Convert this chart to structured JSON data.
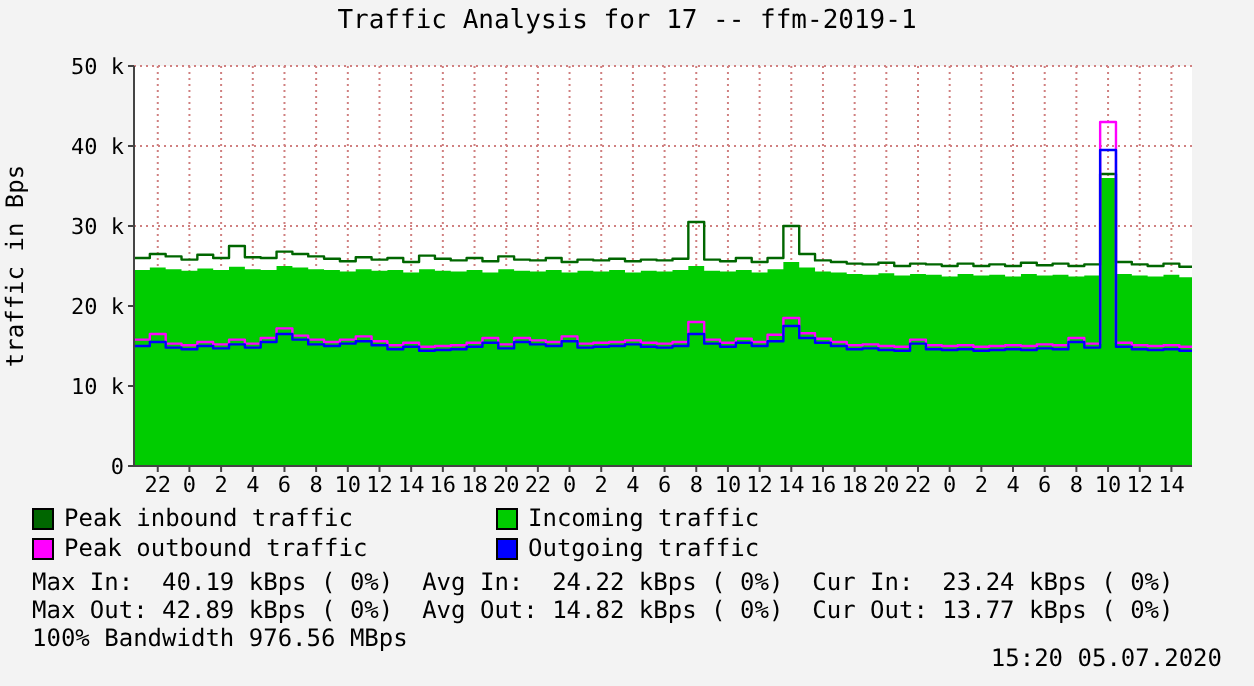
{
  "chart_data": {
    "type": "step",
    "title": "Traffic Analysis for 17 -- ffm-2019-1",
    "ylabel": "traffic in Bps",
    "x": [
      "2020-07-02T20:30",
      "2020-07-02T21:30",
      "2020-07-02T22:30",
      "2020-07-02T23:30",
      "2020-07-03T00:30",
      "2020-07-03T01:30",
      "2020-07-03T02:30",
      "2020-07-03T03:30",
      "2020-07-03T04:30",
      "2020-07-03T05:30",
      "2020-07-03T06:30",
      "2020-07-03T07:30",
      "2020-07-03T08:30",
      "2020-07-03T09:30",
      "2020-07-03T10:30",
      "2020-07-03T11:30",
      "2020-07-03T12:30",
      "2020-07-03T13:30",
      "2020-07-03T14:30",
      "2020-07-03T15:30",
      "2020-07-03T16:30",
      "2020-07-03T17:30",
      "2020-07-03T18:30",
      "2020-07-03T19:30",
      "2020-07-03T20:30",
      "2020-07-03T21:30",
      "2020-07-03T22:30",
      "2020-07-03T23:30",
      "2020-07-04T00:30",
      "2020-07-04T01:30",
      "2020-07-04T02:30",
      "2020-07-04T03:30",
      "2020-07-04T04:30",
      "2020-07-04T05:30",
      "2020-07-04T06:30",
      "2020-07-04T07:30",
      "2020-07-04T08:30",
      "2020-07-04T09:30",
      "2020-07-04T10:30",
      "2020-07-04T11:30",
      "2020-07-04T12:30",
      "2020-07-04T13:30",
      "2020-07-04T14:30",
      "2020-07-04T15:30",
      "2020-07-04T16:30",
      "2020-07-04T17:30",
      "2020-07-04T18:30",
      "2020-07-04T19:30",
      "2020-07-04T20:30",
      "2020-07-04T21:30",
      "2020-07-04T22:30",
      "2020-07-04T23:30",
      "2020-07-05T00:30",
      "2020-07-05T01:30",
      "2020-07-05T02:30",
      "2020-07-05T03:30",
      "2020-07-05T04:30",
      "2020-07-05T05:30",
      "2020-07-05T06:30",
      "2020-07-05T07:30",
      "2020-07-05T08:30",
      "2020-07-05T09:30",
      "2020-07-05T10:30",
      "2020-07-05T11:30",
      "2020-07-05T12:30",
      "2020-07-05T13:30",
      "2020-07-05T14:30",
      "2020-07-05T15:18"
    ],
    "series": [
      {
        "name": "Incoming traffic",
        "type": "area",
        "color": "#00cc00",
        "values": [
          24.5,
          24.8,
          24.6,
          24.4,
          24.7,
          24.5,
          24.9,
          24.6,
          24.5,
          25.0,
          24.8,
          24.6,
          24.5,
          24.3,
          24.6,
          24.4,
          24.5,
          24.2,
          24.6,
          24.4,
          24.3,
          24.5,
          24.2,
          24.6,
          24.4,
          24.3,
          24.5,
          24.2,
          24.4,
          24.3,
          24.5,
          24.2,
          24.4,
          24.3,
          24.5,
          25.0,
          24.4,
          24.3,
          24.5,
          24.2,
          24.6,
          25.5,
          24.8,
          24.3,
          24.2,
          24.0,
          23.9,
          24.1,
          23.8,
          24.0,
          23.9,
          23.7,
          24.0,
          23.8,
          23.9,
          23.7,
          24.0,
          23.8,
          23.9,
          23.7,
          23.8,
          36.0,
          24.0,
          23.8,
          23.7,
          23.9,
          23.6,
          23.5
        ]
      },
      {
        "name": "Peak inbound traffic",
        "color": "#006600",
        "values": [
          26.0,
          26.5,
          26.2,
          25.8,
          26.4,
          26.0,
          27.5,
          26.1,
          26.0,
          26.8,
          26.5,
          26.2,
          25.9,
          25.6,
          26.1,
          25.8,
          26.0,
          25.5,
          26.3,
          25.9,
          25.7,
          26.0,
          25.6,
          26.2,
          25.8,
          25.7,
          26.0,
          25.5,
          25.8,
          25.7,
          25.9,
          25.6,
          25.8,
          25.7,
          25.9,
          30.5,
          25.8,
          25.6,
          26.0,
          25.5,
          26.0,
          30.0,
          26.5,
          25.7,
          25.5,
          25.3,
          25.2,
          25.4,
          25.0,
          25.3,
          25.2,
          25.0,
          25.3,
          25.0,
          25.2,
          25.0,
          25.4,
          25.1,
          25.3,
          25.0,
          25.2,
          36.5,
          25.5,
          25.2,
          25.0,
          25.3,
          24.9,
          24.8
        ]
      },
      {
        "name": "Peak outbound traffic",
        "color": "#ff00ff",
        "values": [
          15.8,
          16.5,
          15.3,
          15.1,
          15.5,
          15.2,
          15.8,
          15.3,
          16.0,
          17.2,
          16.3,
          15.8,
          15.5,
          15.8,
          16.2,
          15.6,
          15.1,
          15.4,
          14.9,
          15.0,
          15.1,
          15.4,
          16.0,
          15.2,
          16.0,
          15.7,
          15.5,
          16.2,
          15.3,
          15.4,
          15.5,
          15.7,
          15.4,
          15.3,
          15.5,
          18.0,
          15.8,
          15.4,
          15.9,
          15.5,
          16.4,
          18.5,
          16.6,
          15.9,
          15.5,
          15.1,
          15.2,
          15.0,
          14.9,
          15.8,
          15.1,
          15.0,
          15.1,
          14.9,
          15.0,
          15.1,
          15.0,
          15.2,
          15.1,
          16.0,
          15.3,
          43.0,
          15.4,
          15.1,
          15.0,
          15.1,
          14.9,
          14.8
        ]
      },
      {
        "name": "Outgoing traffic",
        "color": "#0000ff",
        "values": [
          15.0,
          15.5,
          14.8,
          14.6,
          15.0,
          14.7,
          15.2,
          14.8,
          15.5,
          16.5,
          15.8,
          15.2,
          15.0,
          15.3,
          15.6,
          15.1,
          14.6,
          14.9,
          14.4,
          14.5,
          14.6,
          14.9,
          15.4,
          14.7,
          15.5,
          15.2,
          15.0,
          15.6,
          14.8,
          14.9,
          15.0,
          15.2,
          14.9,
          14.8,
          15.0,
          16.5,
          15.3,
          14.9,
          15.4,
          15.0,
          15.6,
          17.5,
          16.0,
          15.4,
          15.0,
          14.6,
          14.7,
          14.5,
          14.4,
          15.3,
          14.6,
          14.5,
          14.6,
          14.4,
          14.5,
          14.6,
          14.5,
          14.7,
          14.6,
          15.5,
          14.8,
          39.5,
          14.9,
          14.6,
          14.5,
          14.6,
          14.4,
          14.3
        ]
      }
    ],
    "xlim": [
      "2020-07-02T20:30",
      "2020-07-05T15:18"
    ],
    "xticks": [
      {
        "value": "2020-07-02T22:00",
        "label": "22"
      },
      {
        "value": "2020-07-03T00:00",
        "label": "0"
      },
      {
        "value": "2020-07-03T02:00",
        "label": "2"
      },
      {
        "value": "2020-07-03T04:00",
        "label": "4"
      },
      {
        "value": "2020-07-03T06:00",
        "label": "6"
      },
      {
        "value": "2020-07-03T08:00",
        "label": "8"
      },
      {
        "value": "2020-07-03T10:00",
        "label": "10"
      },
      {
        "value": "2020-07-03T12:00",
        "label": "12"
      },
      {
        "value": "2020-07-03T14:00",
        "label": "14"
      },
      {
        "value": "2020-07-03T16:00",
        "label": "16"
      },
      {
        "value": "2020-07-03T18:00",
        "label": "18"
      },
      {
        "value": "2020-07-03T20:00",
        "label": "20"
      },
      {
        "value": "2020-07-03T22:00",
        "label": "22"
      },
      {
        "value": "2020-07-04T00:00",
        "label": "0"
      },
      {
        "value": "2020-07-04T02:00",
        "label": "2"
      },
      {
        "value": "2020-07-04T04:00",
        "label": "4"
      },
      {
        "value": "2020-07-04T06:00",
        "label": "6"
      },
      {
        "value": "2020-07-04T08:00",
        "label": "8"
      },
      {
        "value": "2020-07-04T10:00",
        "label": "10"
      },
      {
        "value": "2020-07-04T12:00",
        "label": "12"
      },
      {
        "value": "2020-07-04T14:00",
        "label": "14"
      },
      {
        "value": "2020-07-04T16:00",
        "label": "16"
      },
      {
        "value": "2020-07-04T18:00",
        "label": "18"
      },
      {
        "value": "2020-07-04T20:00",
        "label": "20"
      },
      {
        "value": "2020-07-04T22:00",
        "label": "22"
      },
      {
        "value": "2020-07-05T00:00",
        "label": "0"
      },
      {
        "value": "2020-07-05T02:00",
        "label": "2"
      },
      {
        "value": "2020-07-05T04:00",
        "label": "4"
      },
      {
        "value": "2020-07-05T06:00",
        "label": "6"
      },
      {
        "value": "2020-07-05T08:00",
        "label": "8"
      },
      {
        "value": "2020-07-05T10:00",
        "label": "10"
      },
      {
        "value": "2020-07-05T12:00",
        "label": "12"
      },
      {
        "value": "2020-07-05T14:00",
        "label": "14"
      }
    ],
    "ylim": [
      0,
      50
    ],
    "yticks": [
      {
        "value": 0,
        "label": "0"
      },
      {
        "value": 10,
        "label": "10 k"
      },
      {
        "value": 20,
        "label": "20 k"
      },
      {
        "value": 30,
        "label": "30 k"
      },
      {
        "value": 40,
        "label": "40 k"
      },
      {
        "value": 50,
        "label": "50 k"
      }
    ],
    "grid": true,
    "legend": "bottom",
    "annotations": [
      "Max In:  40.19 kBps ( 0%)  Avg In:  24.22 kBps ( 0%)  Cur In:  23.24 kBps ( 0%)",
      "Max Out: 42.89 kBps ( 0%)  Avg Out: 14.82 kBps ( 0%)  Cur Out: 13.77 kBps ( 0%)",
      "100% Bandwidth 976.56 MBps",
      "15:20 05.07.2020"
    ]
  }
}
